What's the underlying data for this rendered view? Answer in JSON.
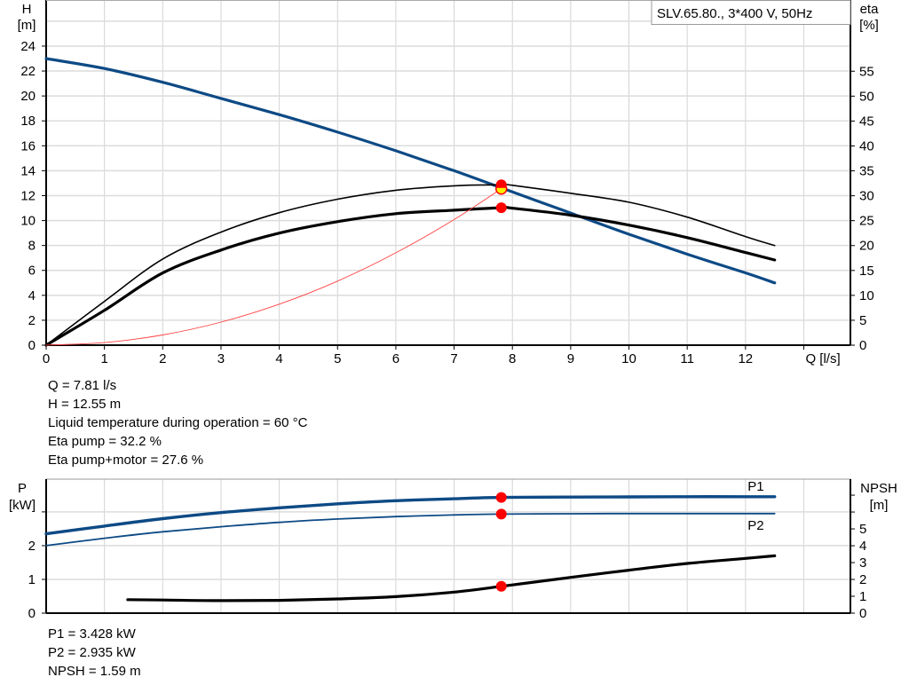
{
  "chart_data": [
    {
      "type": "line",
      "title": "SLV.65.80., 3*400 V, 50Hz",
      "xlabel": "Q [l/s]",
      "ylabel": [
        "H",
        "[m]"
      ],
      "y2label": [
        "eta",
        "[%]"
      ],
      "xlim": [
        0,
        13.8
      ],
      "ylim": [
        0,
        27.7
      ],
      "y2lim": [
        0,
        69.3
      ],
      "xticks": [
        "0",
        "1",
        "2",
        "3",
        "4",
        "5",
        "6",
        "7",
        "8",
        "9",
        "10",
        "11",
        "12"
      ],
      "yticks": [
        "0",
        "2",
        "4",
        "6",
        "8",
        "10",
        "12",
        "14",
        "16",
        "18",
        "20",
        "22",
        "24"
      ],
      "y2ticks": [
        "0",
        "5",
        "10",
        "15",
        "20",
        "25",
        "30",
        "35",
        "40",
        "45",
        "50",
        "55"
      ],
      "grid": true,
      "colors": {
        "head": "#0d4a85",
        "eta": "#000000",
        "system": "#ff4040",
        "point": "#ff0000",
        "duty": "#ffee00"
      },
      "series": [
        {
          "key": "head",
          "axis": "H",
          "x": [
            0,
            1,
            2,
            3,
            4,
            5,
            6,
            7,
            8,
            9,
            10,
            11,
            12,
            12.5
          ],
          "y": [
            23.0,
            22.2,
            21.1,
            19.8,
            18.5,
            17.1,
            15.6,
            14.0,
            12.3,
            10.6,
            8.9,
            7.3,
            5.8,
            5.0
          ]
        },
        {
          "key": "eta_pump",
          "axis": "eta",
          "x": [
            0,
            1,
            2,
            3,
            4,
            5,
            6,
            7,
            7.81,
            8,
            9,
            10,
            11,
            12,
            12.5
          ],
          "y": [
            0,
            8.8,
            17.3,
            22.7,
            26.6,
            29.3,
            31.1,
            32.0,
            32.2,
            32.1,
            30.5,
            28.7,
            25.7,
            21.8,
            20.0
          ]
        },
        {
          "key": "eta_pump_motor",
          "axis": "eta",
          "x": [
            0,
            1,
            2,
            3,
            4,
            5,
            6,
            7,
            7.81,
            8,
            9,
            10,
            11,
            12,
            12.5
          ],
          "y": [
            0,
            7.0,
            14.5,
            19.1,
            22.5,
            24.8,
            26.4,
            27.1,
            27.6,
            27.5,
            26.1,
            24.1,
            21.6,
            18.6,
            17.1
          ]
        },
        {
          "key": "system",
          "axis": "H",
          "x": [
            0,
            1,
            2,
            3,
            4,
            5,
            6,
            7,
            7.81
          ],
          "y": [
            0,
            0.21,
            0.82,
            1.85,
            3.29,
            5.14,
            7.41,
            10.08,
            12.55
          ]
        }
      ],
      "operating_point": {
        "Q": 7.81,
        "H": 12.55,
        "eta_pump": 32.2,
        "eta_pump_motor": 27.6
      }
    },
    {
      "type": "line",
      "ylabel": [
        "P",
        "[kW]"
      ],
      "y2label": [
        "NPSH",
        "[m]"
      ],
      "xlim": [
        0,
        13.8
      ],
      "ylim": [
        0,
        3.97
      ],
      "y2lim": [
        0,
        7.95
      ],
      "yticks": [
        "0",
        "1",
        "2"
      ],
      "y2ticks": [
        "0",
        "1",
        "2",
        "3",
        "4",
        "5"
      ],
      "grid": true,
      "series": [
        {
          "key": "P1",
          "name": "P1",
          "axis": "P",
          "x": [
            0,
            1,
            2,
            3,
            4,
            5,
            6,
            7,
            7.81,
            9,
            10,
            11,
            12,
            12.5
          ],
          "y": [
            2.35,
            2.58,
            2.8,
            2.98,
            3.12,
            3.24,
            3.33,
            3.39,
            3.428,
            3.44,
            3.445,
            3.45,
            3.45,
            3.45
          ]
        },
        {
          "key": "P2",
          "name": "P2",
          "axis": "P",
          "x": [
            0,
            1,
            2,
            3,
            4,
            5,
            6,
            7,
            7.81,
            9,
            10,
            11,
            12,
            12.5
          ],
          "y": [
            2.0,
            2.22,
            2.41,
            2.56,
            2.69,
            2.79,
            2.86,
            2.91,
            2.935,
            2.945,
            2.95,
            2.95,
            2.95,
            2.95
          ]
        },
        {
          "key": "NPSH",
          "axis": "NPSH",
          "x": [
            1.4,
            2,
            3,
            4,
            5,
            6,
            7,
            7.81,
            9,
            10,
            11,
            12,
            12.5
          ],
          "y": [
            0.8,
            0.78,
            0.74,
            0.76,
            0.84,
            0.98,
            1.25,
            1.59,
            2.12,
            2.55,
            2.95,
            3.25,
            3.4
          ]
        }
      ],
      "operating_point": {
        "P1": 3.428,
        "P2": 2.935,
        "NPSH": 1.59
      }
    }
  ],
  "info_top": [
    "Q = 7.81 l/s",
    "H = 12.55 m",
    "Liquid temperature during operation = 60 °C",
    "Eta pump = 32.2 %",
    "Eta pump+motor = 27.6 %"
  ],
  "info_bottom": [
    "P1 = 3.428 kW",
    "P2 = 2.935 kW",
    "NPSH = 1.59 m"
  ]
}
